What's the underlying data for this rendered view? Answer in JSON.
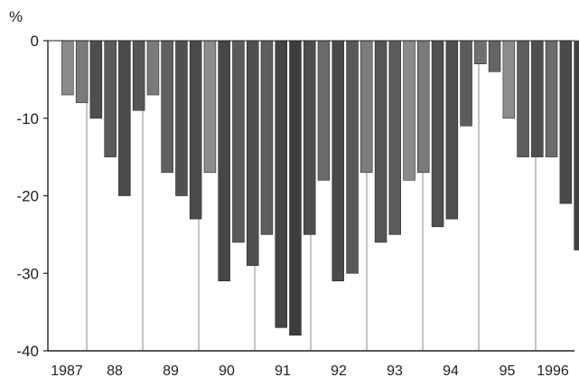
{
  "chart_data": {
    "type": "bar",
    "unit_label": "%",
    "ylim": [
      -40,
      0
    ],
    "y_ticks": [
      "0",
      "-10",
      "-20",
      "-30",
      "-40"
    ],
    "x_tick_labels": [
      "1987",
      "88",
      "89",
      "90",
      "91",
      "92",
      "93",
      "94",
      "95",
      "1996"
    ],
    "grid": "vertical year dividers",
    "legend": "none",
    "values": [
      -7,
      -8,
      -10,
      -15,
      -20,
      -9,
      -7,
      -17,
      -20,
      -23,
      -17,
      -31,
      -26,
      -29,
      -25,
      -37,
      -38,
      -25,
      -18,
      -31,
      -30,
      -17,
      -26,
      -25,
      -18,
      -17,
      -24,
      -23,
      -11,
      -3,
      -4,
      -10,
      -15,
      -15,
      -15,
      -21,
      -27
    ],
    "bar_colors": [
      "#8a8a8a",
      "#7a7a7a",
      "#4e4e4e",
      "#5a5a5a",
      "#4a4a4a",
      "#565656",
      "#7a7a7a",
      "#606060",
      "#505050",
      "#4a4a4a",
      "#8c8c8c",
      "#474747",
      "#5a5a5a",
      "#505050",
      "#5e5e5e",
      "#444444",
      "#3d3d3d",
      "#4d4d4d",
      "#6a6a6a",
      "#4a4a4a",
      "#585858",
      "#7d7d7d",
      "#555555",
      "#5b5b5b",
      "#8b8b8b",
      "#7a7a7a",
      "#505050",
      "#4f4f4f",
      "#5c5c5c",
      "#6f6f6f",
      "#646464",
      "#8c8c8c",
      "#5d5d5d",
      "#4f4f4f",
      "#6c6c6c",
      "#4a4a4a",
      "#414141"
    ]
  }
}
